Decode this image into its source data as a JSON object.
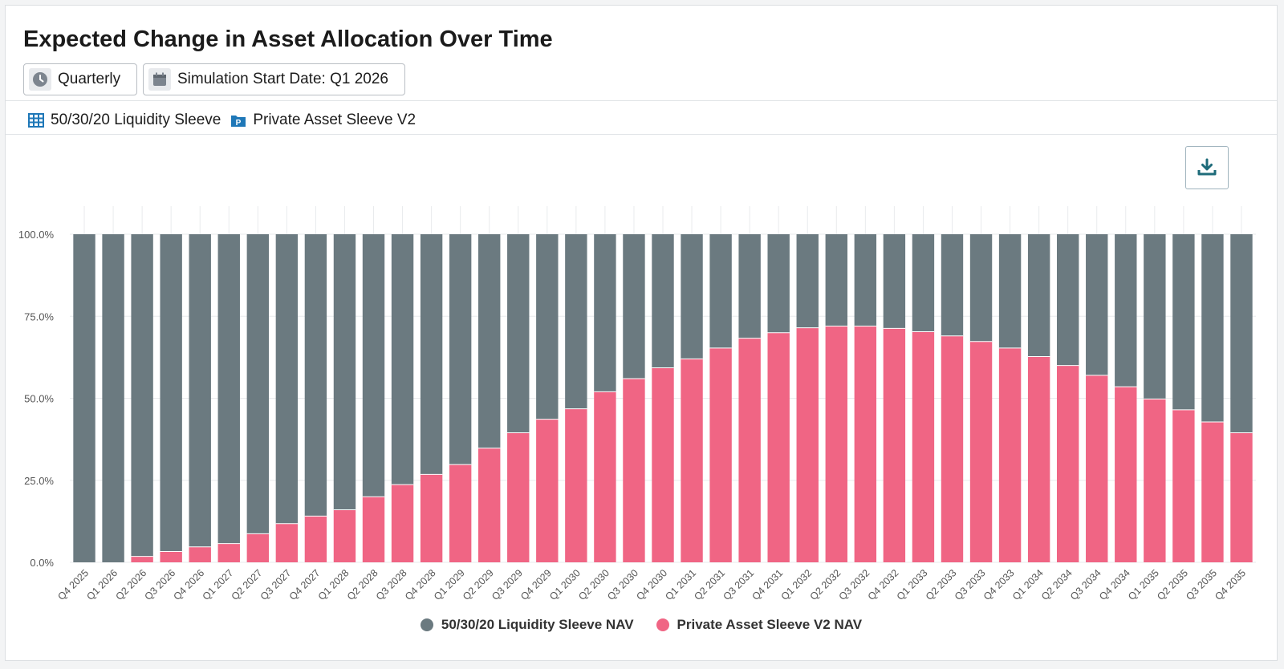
{
  "header": {
    "title": "Expected Change in Asset Allocation Over Time",
    "frequency_label": "Quarterly",
    "start_date_label": "Simulation Start Date: Q1 2026"
  },
  "sleeves": [
    {
      "label": "50/30/20 Liquidity Sleeve",
      "icon": "grid-table-icon"
    },
    {
      "label": "Private Asset Sleeve V2",
      "icon": "private-folder-icon"
    }
  ],
  "toolbar": {
    "download_icon": "download-icon"
  },
  "colors": {
    "liquidity": "#6b7a80",
    "private": "#f06584",
    "grid": "#e9ebed",
    "icon_blue": "#1f78b8",
    "download_teal": "#1e6b7a"
  },
  "chart_data": {
    "type": "bar",
    "stacked": true,
    "title": "Expected Change in Asset Allocation Over Time",
    "xlabel": "",
    "ylabel": "",
    "ylim": [
      0,
      100
    ],
    "y_ticks": [
      "0.0%",
      "25.0%",
      "50.0%",
      "75.0%",
      "100.0%"
    ],
    "y_tick_values": [
      0,
      25,
      50,
      75,
      100
    ],
    "legend_position": "bottom-center",
    "categories": [
      "Q4 2025",
      "Q1 2026",
      "Q2 2026",
      "Q3 2026",
      "Q4 2026",
      "Q1 2027",
      "Q2 2027",
      "Q3 2027",
      "Q4 2027",
      "Q1 2028",
      "Q2 2028",
      "Q3 2028",
      "Q4 2028",
      "Q1 2029",
      "Q2 2029",
      "Q3 2029",
      "Q4 2029",
      "Q1 2030",
      "Q2 2030",
      "Q3 2030",
      "Q4 2030",
      "Q1 2031",
      "Q2 2031",
      "Q3 2031",
      "Q4 2031",
      "Q1 2032",
      "Q2 2032",
      "Q3 2032",
      "Q4 2032",
      "Q1 2033",
      "Q2 2033",
      "Q3 2033",
      "Q4 2033",
      "Q1 2034",
      "Q2 2034",
      "Q3 2034",
      "Q4 2034",
      "Q1 2035",
      "Q2 2035",
      "Q3 2035",
      "Q4 2035"
    ],
    "series": [
      {
        "name": "Private Asset Sleeve V2 NAV",
        "values": [
          0,
          0,
          1.8,
          3.3,
          4.7,
          5.7,
          8.7,
          11.8,
          14.1,
          16.0,
          20.0,
          23.7,
          26.8,
          29.8,
          34.8,
          39.5,
          43.6,
          46.8,
          52.0,
          56.0,
          59.3,
          62.0,
          65.3,
          68.3,
          70.0,
          71.5,
          72.0,
          72.0,
          71.3,
          70.3,
          69.0,
          67.3,
          65.3,
          62.7,
          60.0,
          57.0,
          53.5,
          49.8,
          46.5,
          42.8,
          39.5
        ]
      },
      {
        "name": "50/30/20 Liquidity Sleeve NAV",
        "values": [
          100,
          100,
          98.2,
          96.7,
          95.3,
          94.3,
          91.3,
          88.2,
          85.9,
          84.0,
          80.0,
          76.3,
          73.2,
          70.2,
          65.2,
          60.5,
          56.4,
          53.2,
          48.0,
          44.0,
          40.7,
          38.0,
          34.7,
          31.7,
          30.0,
          28.5,
          28.0,
          28.0,
          28.7,
          29.7,
          31.0,
          32.7,
          34.7,
          37.3,
          40.0,
          43.0,
          46.5,
          50.2,
          53.5,
          57.2,
          60.5
        ]
      }
    ]
  }
}
